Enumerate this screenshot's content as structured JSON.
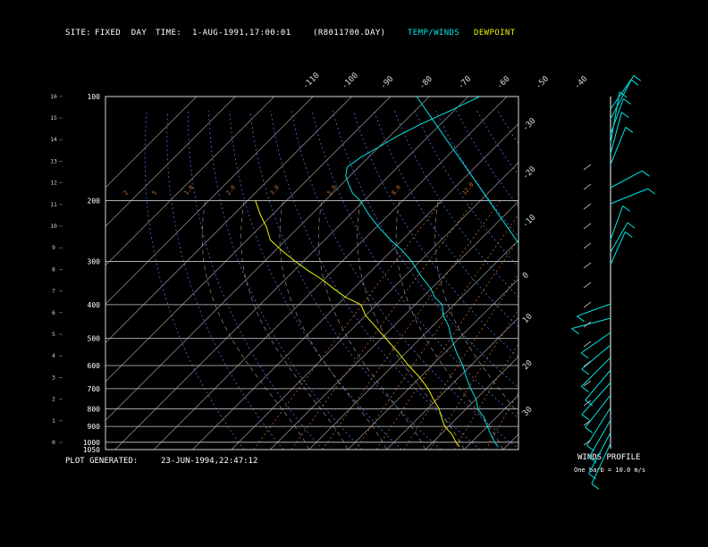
{
  "header": {
    "site_label": "SITE:",
    "site_value": "FIXED  DAY",
    "time_label": "TIME:",
    "time_value": "1-AUG-1991,17:00:01",
    "file": "(R8011700.DAY)",
    "legend_temp": "TEMP/WINDS",
    "legend_dew": "DEWPOINT",
    "temp_color": "#00e5e5",
    "dew_color": "#f0f000"
  },
  "footer": {
    "plot_generated_label": "PLOT GENERATED:",
    "plot_generated_value": "23-JUN-1994,22:47:12"
  },
  "winds_panel": {
    "title": "WINDS PROFILE",
    "note": "One barb = 10.0 m/s"
  },
  "chart_data": {
    "type": "line",
    "pressure_levels": [
      100,
      200,
      300,
      400,
      500,
      600,
      700,
      800,
      900,
      1000,
      1050
    ],
    "pressure_labels": [
      "100",
      "200",
      "300",
      "400",
      "500",
      "600",
      "700",
      "800",
      "900",
      "1000",
      "1050"
    ],
    "height_km_ticks": [
      0,
      1,
      2,
      3,
      4,
      5,
      6,
      7,
      8,
      9,
      10,
      11,
      12,
      13,
      14,
      15,
      16
    ],
    "temperature_ticks_top": [
      "-110",
      "-100",
      "-90",
      "-80",
      "-70",
      "-60",
      "-50",
      "-40"
    ],
    "temperature_ticks_right": [
      "-30",
      "-20",
      "-10",
      "0",
      "10",
      "20",
      "30"
    ],
    "mixing_ratio_labels": [
      "2",
      "5",
      "1.0",
      "2.0",
      "3.0",
      "5.0",
      "8.0",
      "12.0"
    ],
    "isotherm_top_temps": [
      -110,
      -100,
      -90,
      -80,
      -70,
      -60,
      -50,
      -40
    ],
    "series": [
      {
        "name": "TEMP/WINDS",
        "pressure": [
          100,
          110,
          120,
          130,
          140,
          150,
          160,
          170,
          180,
          190,
          200,
          220,
          240,
          260,
          280,
          300,
          330,
          360,
          380,
          400,
          430,
          460,
          500,
          550,
          600,
          650,
          700,
          750,
          800,
          850,
          900,
          950,
          1000,
          1030
        ],
        "temperature": [
          -67,
          -71,
          -75,
          -78,
          -80,
          -82,
          -83,
          -81,
          -78,
          -75,
          -71,
          -65,
          -59,
          -53,
          -47,
          -42,
          -36,
          -30,
          -27,
          -23,
          -20,
          -16,
          -12,
          -7,
          -2,
          2,
          6,
          10,
          13,
          17,
          20,
          23,
          26,
          28
        ]
      },
      {
        "name": "DEWPOINT",
        "pressure": [
          200,
          220,
          240,
          260,
          280,
          300,
          320,
          340,
          360,
          380,
          400,
          430,
          460,
          500,
          550,
          600,
          650,
          700,
          750,
          800,
          850,
          900,
          950,
          1000,
          1030
        ],
        "temperature": [
          -98,
          -93,
          -88,
          -84,
          -78,
          -72,
          -66,
          -60,
          -55,
          -50,
          -44,
          -40,
          -35,
          -29,
          -22,
          -16,
          -10,
          -5,
          -1,
          3,
          6,
          9,
          13,
          16,
          18
        ]
      }
    ]
  }
}
